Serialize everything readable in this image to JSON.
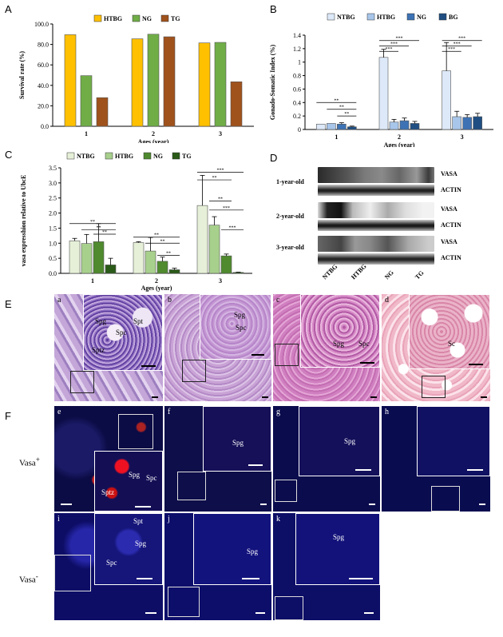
{
  "panel_labels": {
    "A": "A",
    "B": "B",
    "C": "C",
    "D": "D",
    "E": "E",
    "F": "F"
  },
  "colors": {
    "ntbg": "#dde9f8",
    "htbg": "#a8c6ea",
    "ng": "#3d73b5",
    "bg": "#1f4e82",
    "c_ntbg": "#e6f0d8",
    "c_htbg": "#a8d08d",
    "c_ng": "#4f8a2e",
    "c_tg": "#2a5a18",
    "a_htbg": "#ffc000",
    "a_ng": "#70ad47",
    "a_tg": "#a0521c"
  },
  "chart_data": [
    {
      "id": "A",
      "type": "bar",
      "categories": [
        "1",
        "2",
        "3"
      ],
      "series": [
        {
          "name": "HTBG",
          "values": [
            89.5,
            85.5,
            81.5
          ]
        },
        {
          "name": "NG",
          "values": [
            49.5,
            90,
            82
          ]
        },
        {
          "name": "TG",
          "values": [
            28,
            87.5,
            43.5
          ]
        }
      ],
      "xlabel": "Ages (year)",
      "ylabel": "Survival rate (%)",
      "ylim": [
        0,
        100
      ],
      "yticks": [
        "0.0",
        "20.0",
        "40.0",
        "60.0",
        "80.0",
        "100.0"
      ]
    },
    {
      "id": "B",
      "type": "bar",
      "categories": [
        "1",
        "2",
        "3"
      ],
      "series": [
        {
          "name": "NTBG",
          "values": [
            0.08,
            1.07,
            0.87
          ],
          "err": [
            0,
            0.12,
            0.42
          ]
        },
        {
          "name": "HTBG",
          "values": [
            0.09,
            0.11,
            0.19
          ],
          "err": [
            0,
            0.04,
            0.08
          ]
        },
        {
          "name": "NG",
          "values": [
            0.08,
            0.13,
            0.18
          ],
          "err": [
            0.02,
            0.04,
            0.04
          ]
        },
        {
          "name": "BG",
          "values": [
            0.04,
            0.09,
            0.19
          ],
          "err": [
            0.01,
            0.03,
            0.05
          ]
        }
      ],
      "xlabel": "Ages (year)",
      "ylabel": "Gonado-Somatic Index (%)",
      "ylim": [
        0,
        1.4
      ],
      "yticks": [
        "0",
        "0.2",
        "0.4",
        "0.6",
        "0.8",
        "1",
        "1.2",
        "1.4"
      ],
      "sig": [
        "**",
        "**",
        "**",
        "***",
        "***",
        "***",
        "***",
        "***",
        "***"
      ]
    },
    {
      "id": "C",
      "type": "bar",
      "categories": [
        "1",
        "2",
        "3"
      ],
      "series": [
        {
          "name": "NTBG",
          "values": [
            1.08,
            1.02,
            2.25
          ],
          "err": [
            0.08,
            0.03,
            1.0
          ]
        },
        {
          "name": "HTBG",
          "values": [
            0.99,
            0.74,
            1.6
          ],
          "err": [
            0.3,
            0.45,
            0.28
          ]
        },
        {
          "name": "NG",
          "values": [
            1.05,
            0.4,
            0.58
          ],
          "err": [
            0.6,
            0.14,
            0.06
          ]
        },
        {
          "name": "TG",
          "values": [
            0.28,
            0.12,
            0.03
          ],
          "err": [
            0.22,
            0.05,
            0.01
          ]
        }
      ],
      "xlabel": "Ages (year)",
      "ylabel": "vasa expresshion relative to UbcE",
      "ylim": [
        0,
        3.5
      ],
      "yticks": [
        "0.0",
        "0.5",
        "1.0",
        "1.5",
        "2.0",
        "2.5",
        "3.0",
        "3.5"
      ],
      "sig": [
        "**",
        "**",
        "**",
        "**",
        "**",
        "**",
        "***",
        "**",
        "**",
        "***",
        "***"
      ]
    }
  ],
  "blot": {
    "rows": [
      {
        "label": "1-year-old"
      },
      {
        "label": "2-year-old"
      },
      {
        "label": "3-year-old"
      }
    ],
    "vasa": "VASA",
    "actin": "ACTIN",
    "lanes": [
      "NTBG",
      "HTBG",
      "NG",
      "TG"
    ]
  },
  "micro_E": {
    "a": {
      "letter": "a",
      "labels": [
        "Spg",
        "Spt",
        "Spc",
        "Sptz"
      ]
    },
    "b": {
      "letter": "b",
      "labels": [
        "Spg",
        "Spc"
      ]
    },
    "c": {
      "letter": "c",
      "labels": [
        "Spg",
        "Spc"
      ]
    },
    "d": {
      "letter": "d",
      "labels": [
        "Sc"
      ]
    }
  },
  "micro_F": {
    "e": {
      "letter": "e",
      "labels": [
        "Spg",
        "Spc",
        "Sptz"
      ]
    },
    "f": {
      "letter": "f",
      "labels": [
        "Spg"
      ]
    },
    "g": {
      "letter": "g",
      "labels": [
        "Spg"
      ]
    },
    "h": {
      "letter": "h",
      "labels": []
    },
    "i": {
      "letter": "i",
      "labels": [
        "Spt",
        "Spg",
        "Spc"
      ]
    },
    "j": {
      "letter": "j",
      "labels": [
        "Spg"
      ]
    },
    "k": {
      "letter": "k",
      "labels": [
        "Spg"
      ]
    }
  },
  "row_labels": {
    "plus": "Vasa",
    "minus": "Vasa"
  }
}
